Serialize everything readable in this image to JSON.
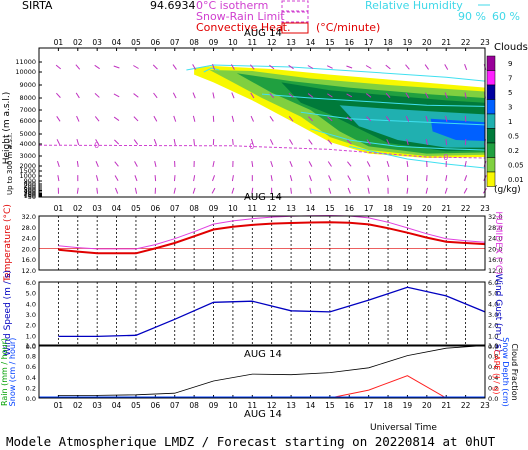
{
  "header": {
    "station": "SIRTA",
    "overlap_text": "94.6934",
    "isotherm_label": "0°C isotherm",
    "snow_rain_label": "Snow-Rain Limit",
    "convective_label": "Convective Heat.",
    "convective_unit": "(°C/minute)",
    "rh_label": "Relative Humidity",
    "rh_90": "90 %",
    "rh_60": "60 %"
  },
  "footer": {
    "universal_time": "Universal Time",
    "forecast_text": "Modele Atmospherique LMDZ / Forecast starting on 20220814 at 0hUT"
  },
  "colors": {
    "temp_red": "#e00000",
    "temp_magenta": "#e040e0",
    "wind_blue": "#0000c0",
    "rain_black": "#000000",
    "cape_red": "#ff2020",
    "isotherm_magenta": "#d040d0",
    "rh_cyan": "#40e0f0"
  },
  "chart_data": [
    {
      "id": "clouds",
      "type": "heatmap",
      "date_label": "AUG 14",
      "hours": [
        "01",
        "02",
        "03",
        "04",
        "05",
        "06",
        "07",
        "08",
        "09",
        "10",
        "11",
        "12",
        "13",
        "14",
        "15",
        "16",
        "17",
        "18",
        "19",
        "20",
        "21",
        "22",
        "23"
      ],
      "ylabel": "Height (m a.s.l.)",
      "ylabel2": "Up to 300 m a.s.l.",
      "yticks": [
        "11000",
        "10000",
        "9000",
        "8000",
        "7000",
        "6000",
        "5000",
        "4000",
        "3000",
        "2000",
        "1500",
        "1000",
        "900",
        "800",
        "700",
        "600",
        "500",
        "400",
        "300",
        "200",
        "150",
        "100",
        "50"
      ],
      "legend_title": "Clouds",
      "legend_unit": "(g/kg)",
      "legend_levels": [
        "9",
        "7",
        "5",
        "3",
        "1",
        "0.5",
        "0.2",
        "0.05",
        "0.01"
      ],
      "legend_colors": [
        "#9a009a",
        "#ff20ff",
        "#0000a0",
        "#0060ff",
        "#20b0b0",
        "#007a3a",
        "#20a040",
        "#80d040",
        "#f8f800"
      ],
      "isotherm_height_m": 3900,
      "isotherm_marker_label": "0"
    },
    {
      "id": "temperature",
      "type": "line",
      "date_label": "AUG 14",
      "ylabel": "Temperature (°C)",
      "ylabel_right": "HUMIDEX (°C)",
      "yticks": [
        "32.0",
        "28.0",
        "24.0",
        "20.0",
        "16.0",
        "12.0"
      ],
      "ylim": [
        12,
        32
      ],
      "x": [
        1,
        2,
        3,
        4,
        5,
        6,
        7,
        8,
        9,
        10,
        11,
        12,
        13,
        14,
        15,
        16,
        17,
        18,
        19,
        20,
        21,
        22,
        23
      ],
      "series": [
        {
          "values": [
            19.5,
            18.8,
            18.2,
            18.2,
            18.2,
            20.0,
            22.0,
            24.5,
            27.0,
            28.0,
            28.7,
            29.2,
            29.4,
            29.6,
            29.7,
            29.5,
            28.9,
            27.5,
            25.8,
            24.0,
            22.5,
            22.0,
            21.6
          ]
        },
        {
          "values": [
            21.0,
            20.3,
            19.8,
            19.8,
            19.8,
            21.4,
            23.6,
            26.2,
            29.0,
            30.2,
            31.0,
            31.6,
            31.9,
            32.1,
            32.2,
            32.0,
            31.3,
            29.7,
            27.6,
            25.4,
            23.6,
            22.8,
            22.3
          ]
        }
      ]
    },
    {
      "id": "wind",
      "type": "line",
      "ylabel": "Wind Speed (m / s)",
      "ylabel_right": "Wind Gust (m / s)",
      "yticks": [
        "6.0",
        "5.0",
        "4.0",
        "3.0",
        "2.0",
        "1.0",
        "0.0"
      ],
      "ylim": [
        0,
        6
      ],
      "x": [
        1,
        3,
        5,
        7,
        9,
        11,
        13,
        15,
        17,
        19,
        21,
        23
      ],
      "values": [
        0.9,
        0.9,
        1.0,
        2.5,
        4.1,
        4.2,
        3.3,
        3.2,
        4.3,
        5.5,
        4.7,
        3.2
      ]
    },
    {
      "id": "rain",
      "type": "line",
      "date_label": "AUG 14",
      "ylabel": "Rain (mm / hour)",
      "ylabel2": "Snow (cm / hour)",
      "ylabel_right": "CAPE (J / g)",
      "ylabel_right2": "Snow Depth (cm)",
      "ylabel_right3": "Cloud Fraction",
      "yticks": [
        "1.0",
        "0.8",
        "0.6",
        "0.4",
        "0.2",
        "0.0"
      ],
      "ylim": [
        0,
        1
      ],
      "x": [
        1,
        3,
        5,
        7,
        9,
        11,
        13,
        15,
        17,
        19,
        21,
        23
      ],
      "series": [
        {
          "values": [
            0.05,
            0.05,
            0.06,
            0.09,
            0.32,
            0.45,
            0.44,
            0.48,
            0.57,
            0.8,
            0.94,
            0.99
          ]
        },
        {
          "values": [
            0,
            0,
            0,
            0,
            0,
            0,
            0,
            0,
            0.15,
            0.42,
            0,
            0
          ]
        }
      ]
    }
  ]
}
